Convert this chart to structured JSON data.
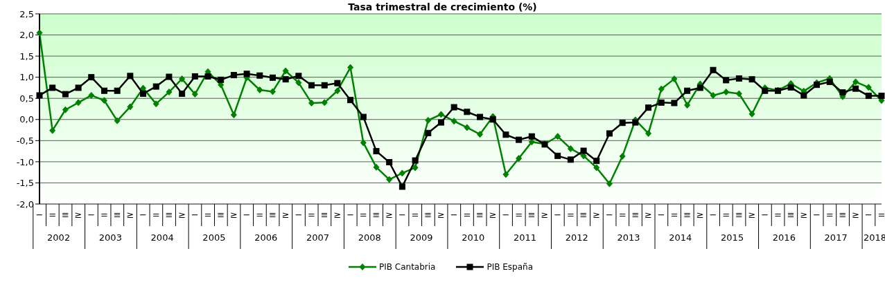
{
  "chart_data": {
    "type": "line",
    "title": "Tasa trimestral de crecimiento  (%)",
    "categories": [
      "−",
      "=",
      "≡",
      "≥",
      "−",
      "=",
      "≡",
      "≥",
      "−",
      "=",
      "≡",
      "≥",
      "−",
      "=",
      "≡",
      "≥",
      "−",
      "=",
      "≡",
      "≥",
      "−",
      "=",
      "≡",
      "≥",
      "−",
      "=",
      "≡",
      "≥",
      "−",
      "=",
      "≡",
      "≥",
      "−",
      "=",
      "≡",
      "≥",
      "−",
      "=",
      "≡",
      "≥",
      "−",
      "=",
      "≡",
      "≥",
      "−",
      "=",
      "≡",
      "≥",
      "−",
      "=",
      "≡",
      "≥",
      "−",
      "=",
      "≡",
      "≥",
      "−",
      "=",
      "≡",
      "≥",
      "−",
      "=",
      "≡",
      "≥",
      "−",
      "="
    ],
    "annotations": [
      "2002",
      "2003",
      "2004",
      "2005",
      "2006",
      "2007",
      "2008",
      "2009",
      "2010",
      "2011",
      "2012",
      "2013",
      "2014",
      "2015",
      "2016",
      "2017",
      "2018"
    ],
    "series": [
      {
        "name": "PIB Cantabria",
        "color": "#008000",
        "marker": "diamond",
        "values": [
          2.05,
          -0.26,
          0.23,
          0.4,
          0.57,
          0.45,
          -0.03,
          0.3,
          0.74,
          0.37,
          0.65,
          0.96,
          0.6,
          1.13,
          0.82,
          0.11,
          0.99,
          0.7,
          0.66,
          1.15,
          0.87,
          0.39,
          0.4,
          0.68,
          1.23,
          -0.55,
          -1.13,
          -1.42,
          -1.27,
          -1.14,
          -0.02,
          0.12,
          -0.04,
          -0.19,
          -0.35,
          0.07,
          -1.3,
          -0.92,
          -0.53,
          -0.58,
          -0.4,
          -0.69,
          -0.86,
          -1.14,
          -1.52,
          -0.87,
          -0.01,
          -0.33,
          0.72,
          0.96,
          0.34,
          0.84,
          0.57,
          0.65,
          0.61,
          0.13,
          0.75,
          0.69,
          0.85,
          0.67,
          0.87,
          0.97,
          0.54,
          0.89,
          0.76,
          0.45
        ]
      },
      {
        "name": "PIB España",
        "color": "#000000",
        "marker": "square",
        "values": [
          0.57,
          0.75,
          0.6,
          0.75,
          1.0,
          0.68,
          0.68,
          1.03,
          0.61,
          0.78,
          1.01,
          0.61,
          1.02,
          1.02,
          0.94,
          1.05,
          1.08,
          1.04,
          0.99,
          0.95,
          1.03,
          0.81,
          0.81,
          0.86,
          0.46,
          0.06,
          -0.75,
          -1.01,
          -1.59,
          -0.97,
          -0.32,
          -0.07,
          0.29,
          0.18,
          0.06,
          0.0,
          -0.36,
          -0.48,
          -0.4,
          -0.59,
          -0.86,
          -0.95,
          -0.74,
          -0.98,
          -0.33,
          -0.08,
          -0.07,
          0.28,
          0.4,
          0.39,
          0.68,
          0.75,
          1.17,
          0.93,
          0.97,
          0.95,
          0.68,
          0.68,
          0.76,
          0.57,
          0.82,
          0.89,
          0.64,
          0.73,
          0.56,
          0.56
        ]
      }
    ],
    "ylim": [
      -2,
      2.5
    ],
    "yticks": [
      {
        "value": -2,
        "label": "-2,0"
      },
      {
        "value": -1.5,
        "label": "-1,5"
      },
      {
        "value": -1,
        "label": "-1,0"
      },
      {
        "value": -0.5,
        "label": "-0,5"
      },
      {
        "value": 0,
        "label": "0,0"
      },
      {
        "value": 0.5,
        "label": "0,5"
      },
      {
        "value": 1,
        "label": "1,0"
      },
      {
        "value": 1.5,
        "label": "1,5"
      },
      {
        "value": 2,
        "label": "2,0"
      },
      {
        "value": 2.5,
        "label": "2,5"
      }
    ],
    "grid": "y",
    "legend": "bottom",
    "line_style": "solid"
  }
}
